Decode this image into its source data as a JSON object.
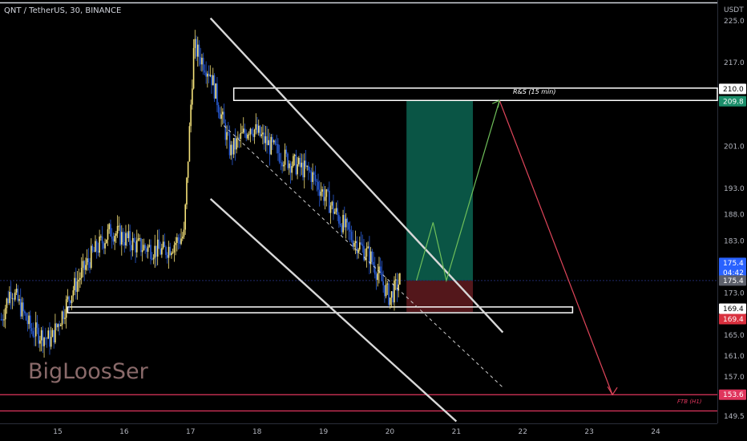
{
  "header": {
    "title": "QNT / TetherUS, 30, BINANCE",
    "currency": "USDT"
  },
  "watermark": "BigLoosSer",
  "colors": {
    "background": "#000000",
    "bull": "#f5e27a",
    "bear": "#2a5cd6",
    "target_zone": "#0b5e4c",
    "stop_zone": "#5c1a1e",
    "plan_up": "#6fbf5a",
    "plan_down": "#e0455a",
    "horizontal_pink": "#e0355d",
    "last_price": "#2962ff",
    "tag_green": "#1b8e6a",
    "tag_red": "#d9303e",
    "tag_gray": "#5d606b"
  },
  "chart_data": {
    "type": "candlestick",
    "symbol": "QNT / TetherUS",
    "interval": "30",
    "exchange": "BINANCE",
    "ylim": [
      148.5,
      227
    ],
    "y_ticks": [
      225.0,
      217.0,
      210.0,
      201.0,
      193.0,
      188.0,
      183.0,
      173.0,
      169.4,
      165.0,
      161.0,
      157.0,
      149.5
    ],
    "x_ticks": [
      "15",
      "16",
      "17",
      "18",
      "19",
      "20",
      "21",
      "22",
      "23",
      "24"
    ],
    "x_tick_days": [
      15,
      16,
      17,
      18,
      19,
      20,
      21,
      22,
      23,
      24
    ],
    "xlim_days": [
      14.15,
      25.0
    ],
    "price_path_days": [
      14.15,
      14.3,
      14.6,
      14.9,
      15.2,
      15.5,
      15.8,
      16.2,
      16.6,
      16.9,
      17.05,
      17.3,
      17.6,
      17.9,
      18.2,
      18.5,
      18.8,
      19.1,
      19.4,
      19.7,
      20.0,
      20.15
    ],
    "price_path_values": [
      168.0,
      174.0,
      166.0,
      164.0,
      173.0,
      180.0,
      185.0,
      182.0,
      181.0,
      184.0,
      220.0,
      215.0,
      200.0,
      205.0,
      201.0,
      198.0,
      196.0,
      190.0,
      184.0,
      180.0,
      172.0,
      175.4
    ],
    "price_tags": [
      {
        "label": "210.0",
        "kind": "white"
      },
      {
        "label": "209.8",
        "kind": "green"
      },
      {
        "label": "175.4",
        "kind": "blue",
        "countdown": "04:42"
      },
      {
        "label": "175.4",
        "kind": "gray"
      },
      {
        "label": "169.4",
        "kind": "white"
      },
      {
        "label": "169.4",
        "kind": "red"
      },
      {
        "label": "153.6",
        "kind": "pink"
      }
    ],
    "annotations": [
      {
        "text": "R&S (15 min)",
        "price": 210.0
      },
      {
        "text": "FTB (H1)",
        "price": 153.6
      }
    ],
    "long_position": {
      "entry": 175.4,
      "target": 209.8,
      "stop": 169.4,
      "start_day": 20.25,
      "end_day": 21.25
    },
    "support_zone": {
      "low": 169.4,
      "high": 170.2,
      "start_day": 15.15,
      "end_day": 22.75
    },
    "resistance_zone": {
      "low": 209.8,
      "high": 212.0,
      "start_day": 17.65,
      "end_day": 25.0
    },
    "channel": {
      "upper": [
        [
          17.3,
          225.5
        ],
        [
          21.7,
          165.5
        ]
      ],
      "lower": [
        [
          17.3,
          191.0
        ],
        [
          21.0,
          148.5
        ]
      ],
      "mid": [
        [
          17.5,
          205.0
        ],
        [
          21.7,
          155.0
        ]
      ]
    },
    "projection_up": [
      [
        20.4,
        175.4
      ],
      [
        20.65,
        186.5
      ],
      [
        20.85,
        175.4
      ],
      [
        21.65,
        209.8
      ]
    ],
    "projection_down": [
      [
        21.65,
        209.8
      ],
      [
        23.35,
        153.6
      ]
    ],
    "horizontal_lines": [
      153.6,
      150.5,
      175.4
    ]
  }
}
